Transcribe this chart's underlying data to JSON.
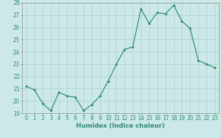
{
  "x": [
    0,
    1,
    2,
    3,
    4,
    5,
    6,
    7,
    8,
    9,
    10,
    11,
    12,
    13,
    14,
    15,
    16,
    17,
    18,
    19,
    20,
    21,
    22,
    23
  ],
  "y": [
    21.2,
    20.9,
    19.8,
    19.2,
    20.7,
    20.4,
    20.3,
    19.2,
    19.7,
    20.4,
    21.6,
    23.0,
    24.2,
    24.4,
    27.5,
    26.3,
    27.2,
    27.1,
    27.8,
    26.5,
    25.9,
    23.3,
    23.0,
    22.7
  ],
  "line_color": "#2e8b72",
  "marker": "D",
  "marker_size": 1.8,
  "linewidth": 0.9,
  "xlabel": "Humidex (Indice chaleur)",
  "xlim": [
    -0.5,
    23.5
  ],
  "ylim": [
    19,
    28
  ],
  "yticks": [
    19,
    20,
    21,
    22,
    23,
    24,
    25,
    26,
    27,
    28
  ],
  "xticks": [
    0,
    1,
    2,
    3,
    4,
    5,
    6,
    7,
    8,
    9,
    10,
    11,
    12,
    13,
    14,
    15,
    16,
    17,
    18,
    19,
    20,
    21,
    22,
    23
  ],
  "bg_color": "#cce8e8",
  "grid_color": "#aacfcf",
  "tick_label_fontsize": 5.5,
  "xlabel_fontsize": 6.5
}
